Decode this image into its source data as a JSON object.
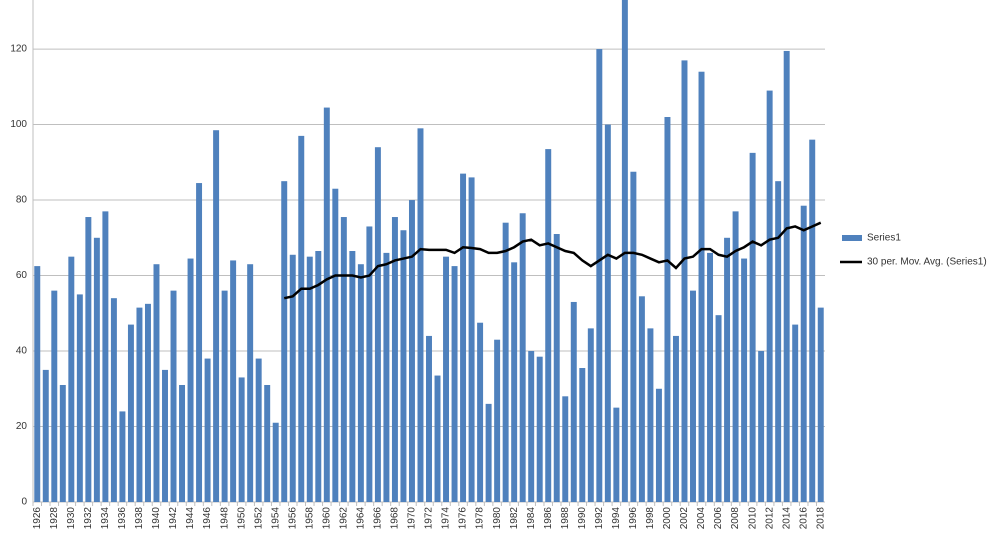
{
  "chart_data": {
    "type": "bar",
    "categories": [
      "1926",
      null,
      "1928",
      null,
      "1930",
      null,
      "1932",
      null,
      "1934",
      null,
      "1936",
      null,
      "1938",
      null,
      "1940",
      null,
      "1942",
      null,
      "1944",
      null,
      "1946",
      null,
      "1948",
      null,
      "1950",
      null,
      "1952",
      null,
      "1954",
      null,
      "1956",
      null,
      "1958",
      null,
      "1960",
      null,
      "1962",
      null,
      "1964",
      null,
      "1966",
      null,
      "1968",
      null,
      "1970",
      null,
      "1972",
      null,
      "1974",
      null,
      "1976",
      null,
      "1978",
      null,
      "1980",
      null,
      "1982",
      null,
      "1984",
      null,
      "1986",
      null,
      "1988",
      null,
      "1990",
      null,
      "1992",
      null,
      "1994",
      null,
      "1996",
      null,
      "1998",
      null,
      "2000",
      null,
      "2002",
      null,
      "2004",
      null,
      "2006",
      null,
      "2008",
      null,
      "2010",
      null,
      "2012",
      null,
      "2014",
      null,
      "2016",
      null,
      "2018"
    ],
    "series": [
      {
        "name": "Series1",
        "color": "#4f81bd",
        "values": [
          62.5,
          35,
          56,
          31,
          65,
          55,
          75.5,
          70,
          77,
          54,
          24,
          47,
          51.5,
          52.5,
          63,
          35,
          56,
          31,
          64.5,
          84.5,
          38,
          98.5,
          56,
          64,
          33,
          63,
          38,
          31,
          21,
          85,
          65.5,
          97,
          65,
          66.5,
          104.5,
          83,
          75.5,
          66.5,
          63,
          73,
          94,
          66,
          75.5,
          72,
          80,
          99,
          44,
          33.5,
          65,
          62.5,
          87,
          86,
          47.5,
          26,
          43,
          74,
          63.5,
          76.5,
          40,
          38.5,
          93.5,
          71,
          28,
          53,
          35.5,
          46,
          120,
          100,
          25,
          135,
          87.5,
          54.5,
          46,
          30,
          102,
          44,
          117,
          56,
          114,
          66,
          49.5,
          70,
          77,
          64.5,
          92.5,
          40,
          109,
          85,
          119.5,
          47,
          78.5,
          96,
          51.5
        ]
      },
      {
        "name": "30 per. Mov. Avg. (Series1)",
        "color": "#000000",
        "line": true,
        "values": [
          null,
          null,
          null,
          null,
          null,
          null,
          null,
          null,
          null,
          null,
          null,
          null,
          null,
          null,
          null,
          null,
          null,
          null,
          null,
          null,
          null,
          null,
          null,
          null,
          null,
          null,
          null,
          null,
          null,
          54,
          54.5,
          56.5,
          56.5,
          57.5,
          59,
          60,
          60,
          60,
          59.5,
          60,
          62.5,
          63,
          64,
          64.5,
          65,
          67,
          66.8,
          66.8,
          66.8,
          66,
          67.5,
          67.3,
          67,
          66,
          66,
          66.5,
          67.5,
          69,
          69.5,
          68,
          68.5,
          67.5,
          66.5,
          66,
          64,
          62.5,
          64,
          65.5,
          64.5,
          66,
          66,
          65.5,
          64.5,
          63.5,
          64,
          62,
          64.5,
          65,
          67,
          67,
          65.5,
          65,
          66.5,
          67.5,
          69,
          68,
          69.5,
          70,
          72.5,
          73,
          72,
          73,
          74
        ]
      }
    ],
    "ylim": [
      0,
      133
    ],
    "yticks": [
      0,
      20,
      40,
      60,
      80,
      100,
      120
    ],
    "grid": true,
    "legend": "right"
  }
}
